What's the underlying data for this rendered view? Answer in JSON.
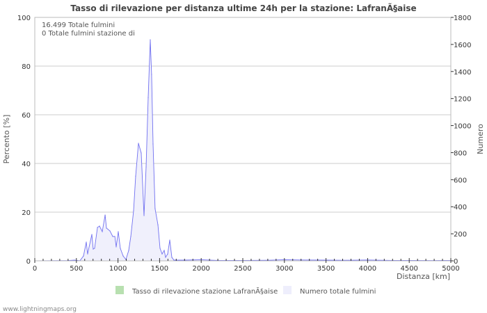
{
  "chart_data": {
    "type": "area",
    "title": "Tasso di rilevazione per distanza ultime 24h per la stazione: LafranÃ§aise",
    "xlabel": "Distanza   [km]",
    "ylabel_left": "Percento   [%]",
    "ylabel_right": "Numero",
    "xlim": [
      0,
      5000
    ],
    "ylim_left": [
      0,
      100
    ],
    "ylim_right": [
      0,
      1800
    ],
    "x_ticks": [
      0,
      500,
      1000,
      1500,
      2000,
      2500,
      3000,
      3500,
      4000,
      4500,
      5000
    ],
    "y_ticks_left": [
      0,
      20,
      40,
      60,
      80,
      100
    ],
    "y_ticks_right": [
      0,
      200,
      400,
      600,
      800,
      1000,
      1200,
      1400,
      1600,
      1800
    ],
    "grid": true,
    "annotations": [
      "16.499 Totale fulmini",
      "0 Totale fulmini stazione di"
    ],
    "legend": [
      {
        "label": "Tasso di rilevazione stazione LafranÃ§aise",
        "color": "#b8e0b0"
      },
      {
        "label": "Numero totale fulmini",
        "color": "#eeeefc"
      }
    ],
    "legend_placement": "bottom",
    "series": [
      {
        "name": "Numero totale fulmini",
        "axis": "right",
        "color": "#7070f0",
        "fill": "#f0f0fc",
        "x": [
          0,
          400,
          477,
          543,
          585,
          619,
          635,
          686,
          702,
          719,
          753,
          778,
          811,
          845,
          861,
          903,
          937,
          962,
          978,
          1003,
          1028,
          1062,
          1095,
          1129,
          1154,
          1187,
          1212,
          1246,
          1279,
          1313,
          1338,
          1363,
          1388,
          1404,
          1421,
          1446,
          1480,
          1505,
          1530,
          1555,
          1572,
          1597,
          1622,
          1647,
          1672,
          1800,
          2000,
          2200,
          2500,
          2800,
          3000,
          3200,
          3500,
          3700,
          4000,
          4300,
          4500,
          4800,
          5000
        ],
        "y": [
          0,
          2,
          5,
          1,
          36,
          139,
          51,
          195,
          87,
          93,
          247,
          257,
          216,
          339,
          242,
          221,
          180,
          180,
          103,
          216,
          93,
          36,
          10,
          77,
          180,
          370,
          627,
          869,
          797,
          334,
          694,
          1208,
          1635,
          1378,
          864,
          386,
          267,
          93,
          51,
          77,
          26,
          51,
          154,
          26,
          5,
          5,
          8,
          3,
          3,
          4,
          8,
          6,
          5,
          4,
          6,
          3,
          3,
          2,
          3
        ]
      },
      {
        "name": "Tasso di rilevazione stazione LafranÃ§aise",
        "axis": "left",
        "color": "#b8e0b0",
        "x": [],
        "y": []
      }
    ]
  },
  "footer": "www.lightningmaps.org"
}
